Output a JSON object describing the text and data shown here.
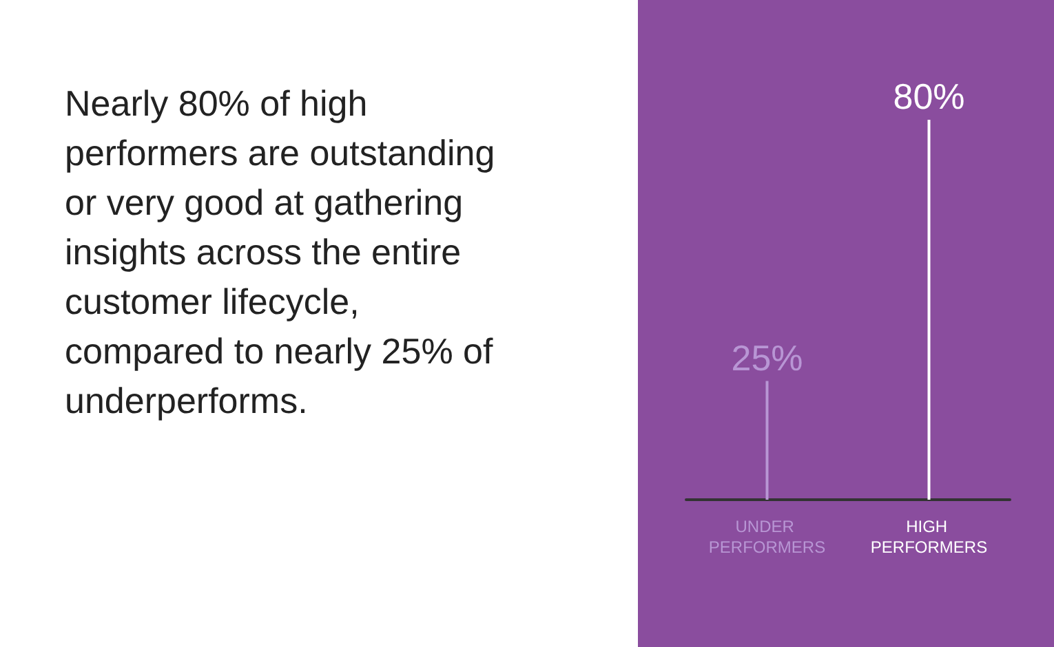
{
  "chart_data": {
    "type": "bar",
    "title": "Nearly 80% of high performers are outstanding or very good at gathering insights across the entire customer lifecycle, compared to nearly 25% of underperforms.",
    "categories": [
      "UNDER PERFORMERS",
      "HIGH PERFORMERS"
    ],
    "values": [
      25,
      80
    ],
    "colors": [
      "#b896d4",
      "#ffffff"
    ],
    "value_labels": [
      "25%",
      "80%"
    ]
  }
}
